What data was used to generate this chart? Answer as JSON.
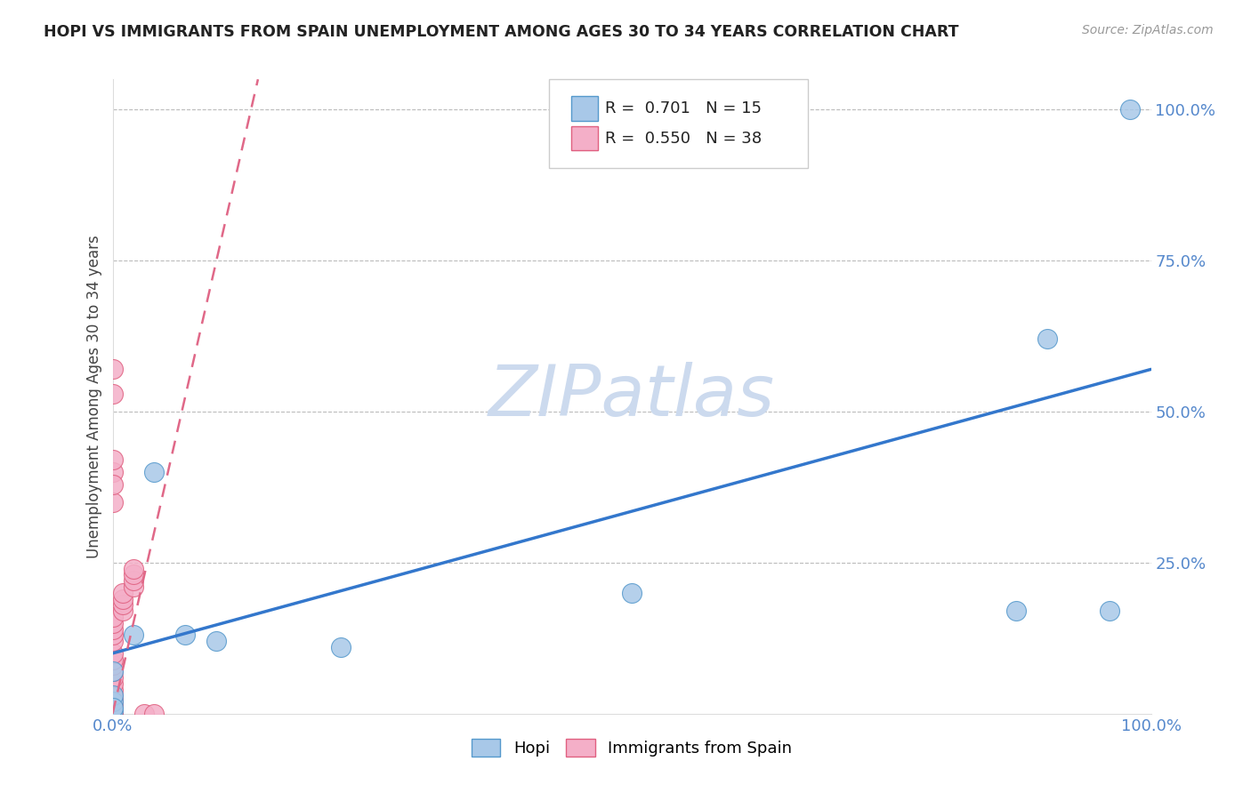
{
  "title": "HOPI VS IMMIGRANTS FROM SPAIN UNEMPLOYMENT AMONG AGES 30 TO 34 YEARS CORRELATION CHART",
  "source": "Source: ZipAtlas.com",
  "ylabel": "Unemployment Among Ages 30 to 34 years",
  "watermark": "ZIPatlas",
  "xlim": [
    0,
    1.0
  ],
  "ylim": [
    0,
    1.05
  ],
  "ytick_positions": [
    0.0,
    0.25,
    0.5,
    0.75,
    1.0
  ],
  "ytick_labels": [
    "",
    "25.0%",
    "50.0%",
    "75.0%",
    "100.0%"
  ],
  "xtick_positions": [
    0.0,
    1.0
  ],
  "xtick_labels": [
    "0.0%",
    "100.0%"
  ],
  "legend_r_hopi": "0.701",
  "legend_n_hopi": "15",
  "legend_r_spain": "0.550",
  "legend_n_spain": "38",
  "hopi_color": "#a8c8e8",
  "spain_color": "#f4afc8",
  "hopi_edge_color": "#5599cc",
  "spain_edge_color": "#e06080",
  "hopi_line_color": "#3377cc",
  "spain_line_color": "#e06888",
  "hopi_scatter_x": [
    0.0,
    0.0,
    0.0,
    0.02,
    0.04,
    0.07,
    0.1,
    0.22,
    0.5,
    0.87,
    0.9,
    0.96,
    0.98,
    0.0,
    0.0
  ],
  "hopi_scatter_y": [
    0.005,
    0.02,
    0.07,
    0.13,
    0.4,
    0.13,
    0.12,
    0.11,
    0.2,
    0.17,
    0.62,
    0.17,
    1.0,
    0.03,
    0.01
  ],
  "spain_scatter_x": [
    0.0,
    0.0,
    0.0,
    0.0,
    0.0,
    0.0,
    0.0,
    0.0,
    0.0,
    0.0,
    0.0,
    0.0,
    0.0,
    0.0,
    0.0,
    0.0,
    0.0,
    0.0,
    0.0,
    0.0,
    0.0,
    0.01,
    0.01,
    0.01,
    0.01,
    0.02,
    0.02,
    0.02,
    0.02,
    0.03,
    0.04,
    0.0,
    0.0,
    0.0,
    0.0,
    0.0,
    0.0,
    0.0
  ],
  "spain_scatter_y": [
    0.0,
    0.0,
    0.0,
    0.005,
    0.01,
    0.015,
    0.02,
    0.025,
    0.03,
    0.04,
    0.05,
    0.06,
    0.07,
    0.08,
    0.09,
    0.1,
    0.12,
    0.13,
    0.14,
    0.15,
    0.16,
    0.17,
    0.18,
    0.19,
    0.2,
    0.21,
    0.22,
    0.23,
    0.24,
    0.0,
    0.0,
    0.4,
    0.42,
    0.35,
    0.38,
    0.53,
    0.57,
    0.0
  ],
  "hopi_trend_x0": 0.0,
  "hopi_trend_y0": 0.1,
  "hopi_trend_x1": 1.0,
  "hopi_trend_y1": 0.57,
  "spain_trend_x0": 0.0,
  "spain_trend_y0": 0.0,
  "spain_trend_x1": 0.14,
  "spain_trend_y1": 1.05,
  "grid_color": "#bbbbbb",
  "bg_color": "#ffffff",
  "title_color": "#222222",
  "axis_label_color": "#444444",
  "tick_color": "#5588cc",
  "watermark_color": "#ccdaee",
  "source_color": "#999999"
}
